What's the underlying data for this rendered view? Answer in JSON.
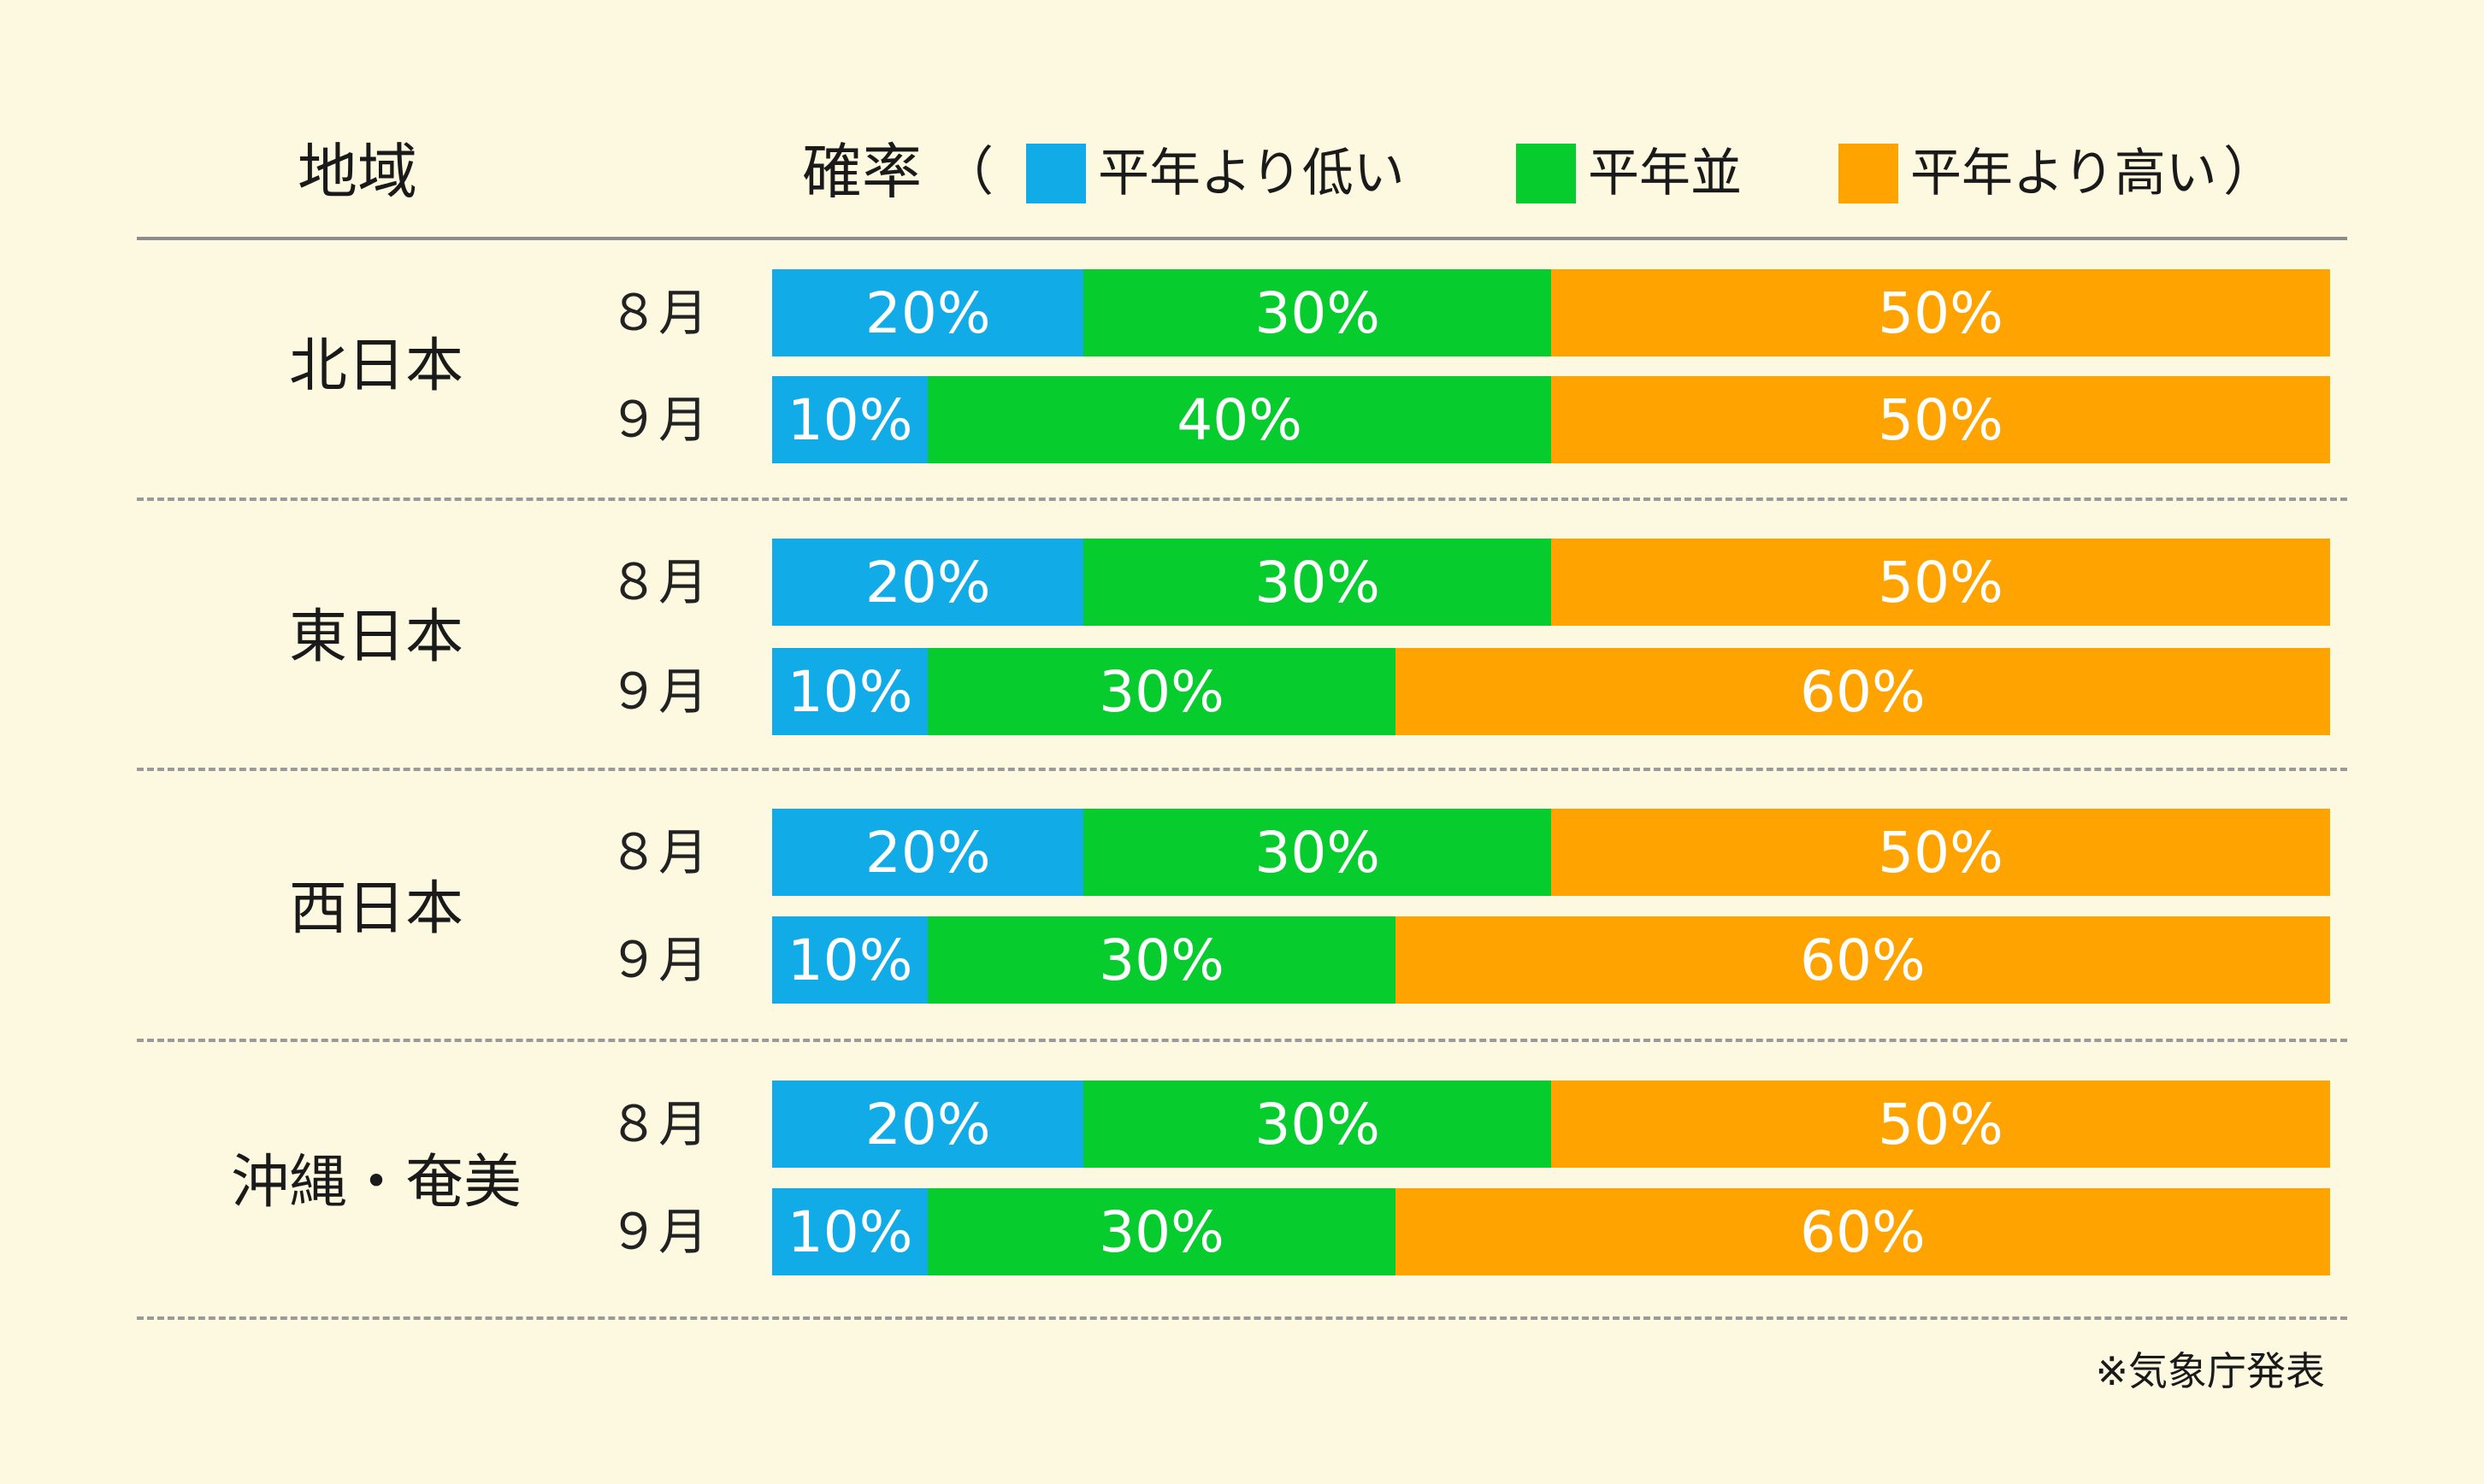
{
  "header": {
    "region_label": "地域",
    "probability_label": "確率",
    "open_paren": "（",
    "close_paren": "）"
  },
  "colors": {
    "background": "#fdf9e1",
    "below": "#11ace8",
    "normal": "#06cc2e",
    "above": "#ffa300",
    "bar_text": "#ffffff"
  },
  "chart_data": {
    "type": "bar",
    "orientation": "horizontal-stacked-100",
    "series": [
      {
        "name": "平年より低い",
        "color": "#11ace8"
      },
      {
        "name": "平年並",
        "color": "#06cc2e"
      },
      {
        "name": "平年より高い",
        "color": "#ffa300"
      }
    ],
    "regions": [
      {
        "name": "北日本",
        "rows": [
          {
            "month": "８月",
            "values": [
              20,
              30,
              50
            ],
            "labels": [
              "20%",
              "30%",
              "50%"
            ]
          },
          {
            "month": "９月",
            "values": [
              10,
              40,
              50
            ],
            "labels": [
              "10%",
              "40%",
              "50%"
            ]
          }
        ]
      },
      {
        "name": "東日本",
        "rows": [
          {
            "month": "８月",
            "values": [
              20,
              30,
              50
            ],
            "labels": [
              "20%",
              "30%",
              "50%"
            ]
          },
          {
            "month": "９月",
            "values": [
              10,
              30,
              60
            ],
            "labels": [
              "10%",
              "30%",
              "60%"
            ]
          }
        ]
      },
      {
        "name": "西日本",
        "rows": [
          {
            "month": "８月",
            "values": [
              20,
              30,
              50
            ],
            "labels": [
              "20%",
              "30%",
              "50%"
            ]
          },
          {
            "month": "９月",
            "values": [
              10,
              30,
              60
            ],
            "labels": [
              "10%",
              "30%",
              "60%"
            ]
          }
        ]
      },
      {
        "name": "沖縄・奄美",
        "rows": [
          {
            "month": "８月",
            "values": [
              20,
              30,
              50
            ],
            "labels": [
              "20%",
              "30%",
              "50%"
            ]
          },
          {
            "month": "９月",
            "values": [
              10,
              30,
              60
            ],
            "labels": [
              "10%",
              "30%",
              "60%"
            ]
          }
        ]
      }
    ]
  },
  "footer": {
    "source": "※気象庁発表"
  }
}
